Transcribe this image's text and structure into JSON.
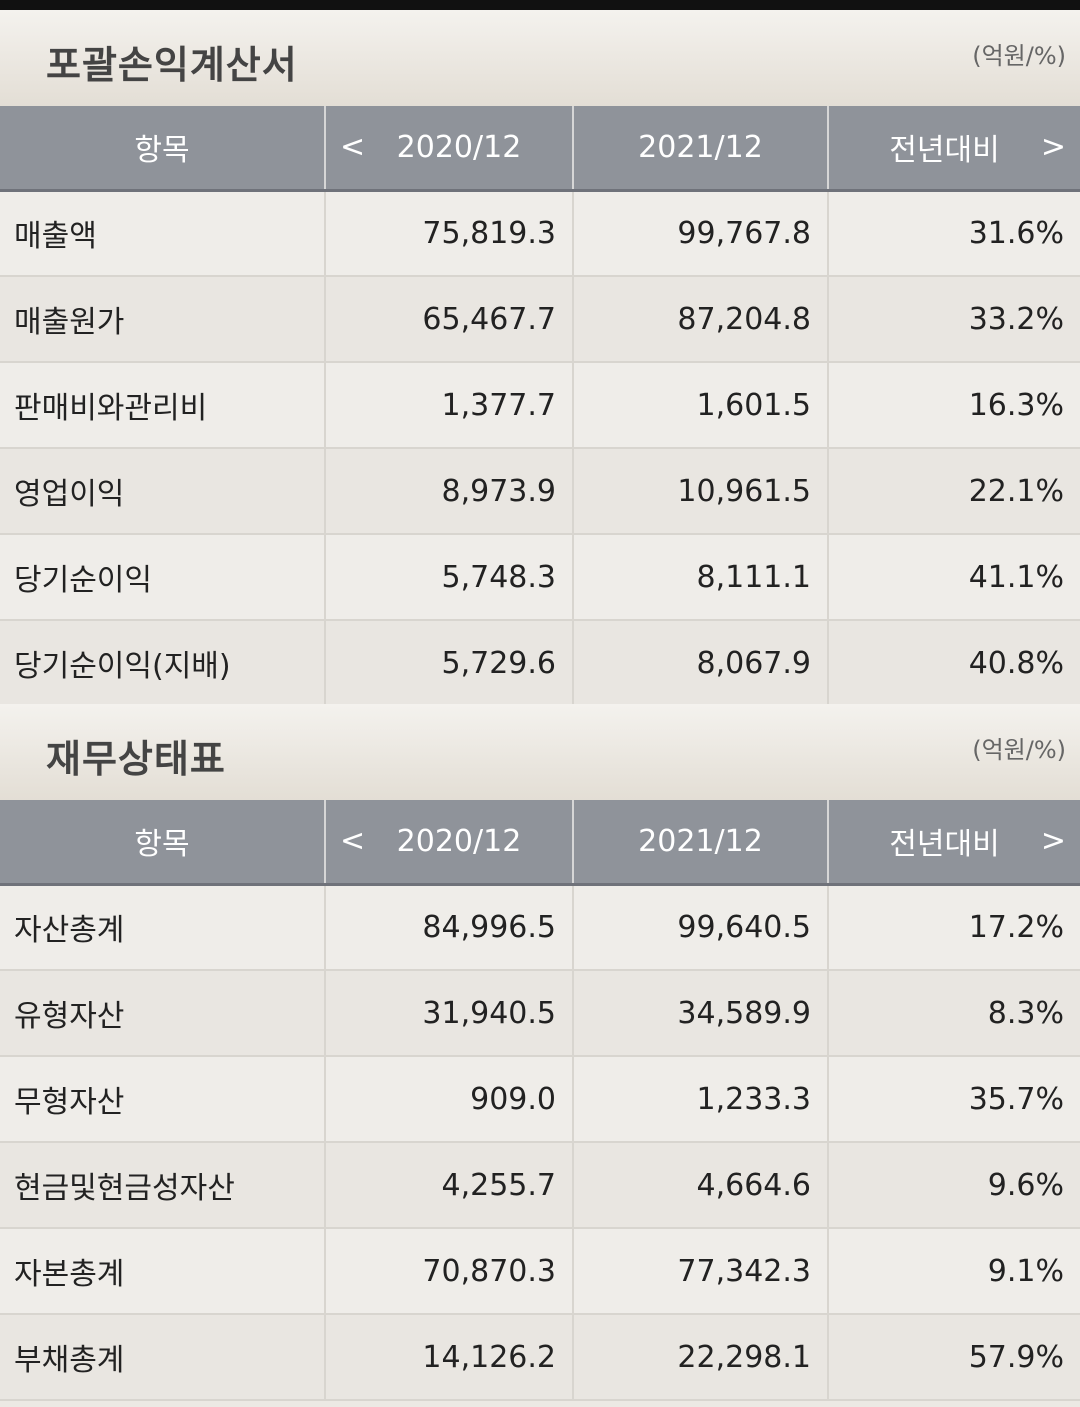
{
  "income": {
    "title": "포괄손익계산서",
    "unit": "(억원/%)",
    "headers": {
      "item": "항목",
      "prev": "2020/12",
      "curr": "2021/12",
      "yoy": "전년대비"
    },
    "rows": [
      {
        "label": "매출액",
        "prev": "75,819.3",
        "curr": "99,767.8",
        "yoy": "31.6%"
      },
      {
        "label": "매출원가",
        "prev": "65,467.7",
        "curr": "87,204.8",
        "yoy": "33.2%"
      },
      {
        "label": "판매비와관리비",
        "prev": "1,377.7",
        "curr": "1,601.5",
        "yoy": "16.3%"
      },
      {
        "label": "영업이익",
        "prev": "8,973.9",
        "curr": "10,961.5",
        "yoy": "22.1%"
      },
      {
        "label": "당기순이익",
        "prev": "5,748.3",
        "curr": "8,111.1",
        "yoy": "41.1%"
      },
      {
        "label": "당기순이익(지배)",
        "prev": "5,729.6",
        "curr": "8,067.9",
        "yoy": "40.8%"
      }
    ]
  },
  "balance": {
    "title": "재무상태표",
    "unit": "(억원/%)",
    "headers": {
      "item": "항목",
      "prev": "2020/12",
      "curr": "2021/12",
      "yoy": "전년대비"
    },
    "rows": [
      {
        "label": "자산총계",
        "prev": "84,996.5",
        "curr": "99,640.5",
        "yoy": "17.2%"
      },
      {
        "label": "유형자산",
        "prev": "31,940.5",
        "curr": "34,589.9",
        "yoy": "8.3%"
      },
      {
        "label": "무형자산",
        "prev": "909.0",
        "curr": "1,233.3",
        "yoy": "35.7%"
      },
      {
        "label": "현금및현금성자산",
        "prev": "4,255.7",
        "curr": "4,664.6",
        "yoy": "9.6%"
      },
      {
        "label": "자본총계",
        "prev": "70,870.3",
        "curr": "77,342.3",
        "yoy": "9.1%"
      },
      {
        "label": "부채총계",
        "prev": "14,126.2",
        "curr": "22,298.1",
        "yoy": "57.9%"
      }
    ]
  },
  "icons": {
    "prev": "chevron-left-icon",
    "next": "chevron-right-icon"
  }
}
